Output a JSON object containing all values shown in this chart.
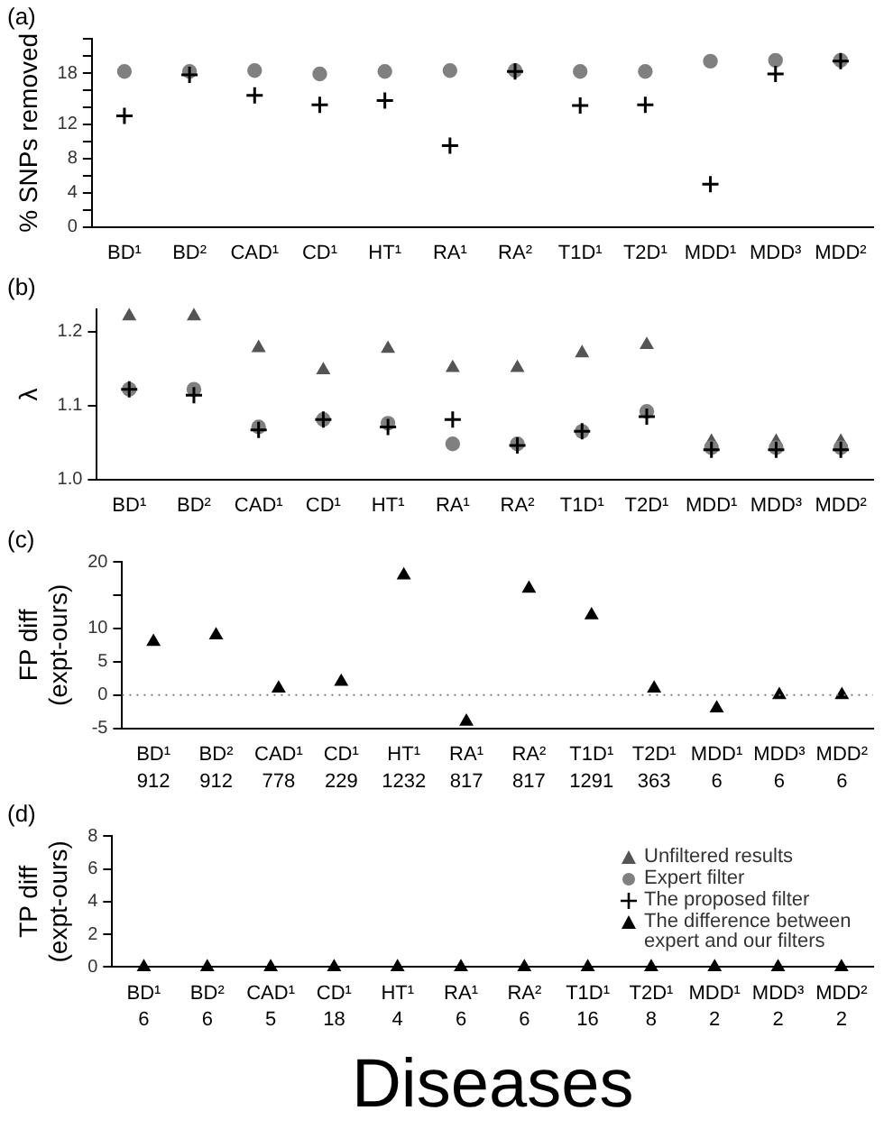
{
  "chart_data": [
    {
      "type": "scatter",
      "title": "(a)",
      "ylabel": "% SNPs removed",
      "categories": [
        "BD¹",
        "BD²",
        "CAD¹",
        "CD¹",
        "HT¹",
        "RA¹",
        "RA²",
        "T1D¹",
        "T2D¹",
        "MDD¹",
        "MDD³",
        "MDD²"
      ],
      "series": [
        {
          "color": "#808080",
          "marker": "circle",
          "values": [
            18.2,
            18.2,
            18.3,
            17.9,
            18.2,
            18.3,
            18.3,
            18.2,
            18.2,
            19.4,
            19.5,
            19.5
          ]
        },
        {
          "color": "#000000",
          "marker": "cross",
          "values": [
            13.0,
            17.8,
            15.4,
            14.3,
            14.8,
            9.5,
            18.2,
            14.2,
            14.3,
            5.0,
            17.9,
            19.4
          ]
        }
      ],
      "ylim": [
        0,
        22
      ],
      "yticks": [
        0,
        {
          "value": 2,
          "label": null
        },
        4,
        {
          "value": 6,
          "label": null
        },
        8,
        {
          "value": 10,
          "label": null
        },
        12,
        {
          "value": 14,
          "label": null
        },
        {
          "value": 16,
          "label": null
        },
        18,
        {
          "value": 20,
          "label": null
        },
        {
          "value": 22,
          "label": null
        }
      ],
      "grid": false
    },
    {
      "type": "scatter",
      "title": "(b)",
      "ylabel": "λ",
      "categories": [
        "BD¹",
        "BD²",
        "CAD¹",
        "CD¹",
        "HT¹",
        "RA¹",
        "RA²",
        "T1D¹",
        "T2D¹",
        "MDD¹",
        "MDD³",
        "MDD²"
      ],
      "series": [
        {
          "name": "Unfiltered results",
          "color": "#555555",
          "marker": "triangle",
          "values": [
            1.221,
            1.221,
            1.178,
            1.148,
            1.177,
            1.151,
            1.151,
            1.171,
            1.182,
            1.051,
            1.051,
            1.051
          ]
        },
        {
          "name": "Expert filter",
          "color": "#808080",
          "marker": "circle",
          "values": [
            1.122,
            1.122,
            1.071,
            1.081,
            1.076,
            1.048,
            1.048,
            1.065,
            1.092,
            1.043,
            1.043,
            1.043
          ]
        },
        {
          "name": "The proposed filter",
          "color": "#000000",
          "marker": "cross",
          "values": [
            1.122,
            1.114,
            1.067,
            1.081,
            1.071,
            1.081,
            1.046,
            1.065,
            1.085,
            1.04,
            1.04,
            1.04
          ]
        }
      ],
      "legend": "bottom right",
      "ylim": [
        1.0,
        1.23
      ],
      "yticks": [
        {
          "value": 1.0,
          "label": "1.0"
        },
        1.1,
        1.2
      ],
      "grid": false
    },
    {
      "type": "scatter",
      "title": "(c)",
      "ylabel": "FP diff\n(expt-ours)",
      "categories": [
        "BD¹",
        "BD²",
        "CAD¹",
        "CD¹",
        "HT¹",
        "RA¹",
        "RA²",
        "T1D¹",
        "T2D¹",
        "MDD¹",
        "MDD³",
        "MDD²"
      ],
      "series": [
        {
          "color": "#000000",
          "marker": "triangle",
          "values": [
            8,
            9,
            1,
            2,
            18,
            -4,
            16,
            12,
            1,
            -2,
            0,
            0
          ]
        }
      ],
      "ylim": [
        -5,
        20
      ],
      "yticks": [
        -5,
        0,
        5,
        10,
        {
          "value": 15,
          "label": null
        },
        20
      ],
      "grid": false,
      "ref_lines": [
        {
          "axis": "y",
          "value": 0,
          "color": "#808080",
          "line_style": "dotted"
        }
      ],
      "annotations": [
        "912",
        "912",
        "778",
        "229",
        "1232",
        "817",
        "817",
        "1291",
        "363",
        "6",
        "6",
        "6"
      ]
    },
    {
      "type": "scatter",
      "title": "(d)",
      "ylabel": "TP diff\n(expt-ours)",
      "xlabel": "Diseases",
      "categories": [
        "BD¹",
        "BD²",
        "CAD¹",
        "CD¹",
        "HT¹",
        "RA¹",
        "RA²",
        "T1D¹",
        "T2D¹",
        "MDD¹",
        "MDD³",
        "MDD²"
      ],
      "series": [
        {
          "name": "The difference between expert and our filters",
          "color": "#000000",
          "marker": "triangle",
          "values": [
            0,
            0,
            0,
            0,
            0,
            0,
            0,
            0,
            0,
            0,
            0,
            0
          ]
        }
      ],
      "ylim": [
        0,
        8
      ],
      "yticks": [
        0,
        2,
        4,
        6,
        8
      ],
      "grid": false,
      "legend": "right",
      "annotations": [
        "6",
        "6",
        "5",
        "18",
        "4",
        "6",
        "6",
        "16",
        "8",
        "2",
        "2",
        "2"
      ]
    }
  ]
}
